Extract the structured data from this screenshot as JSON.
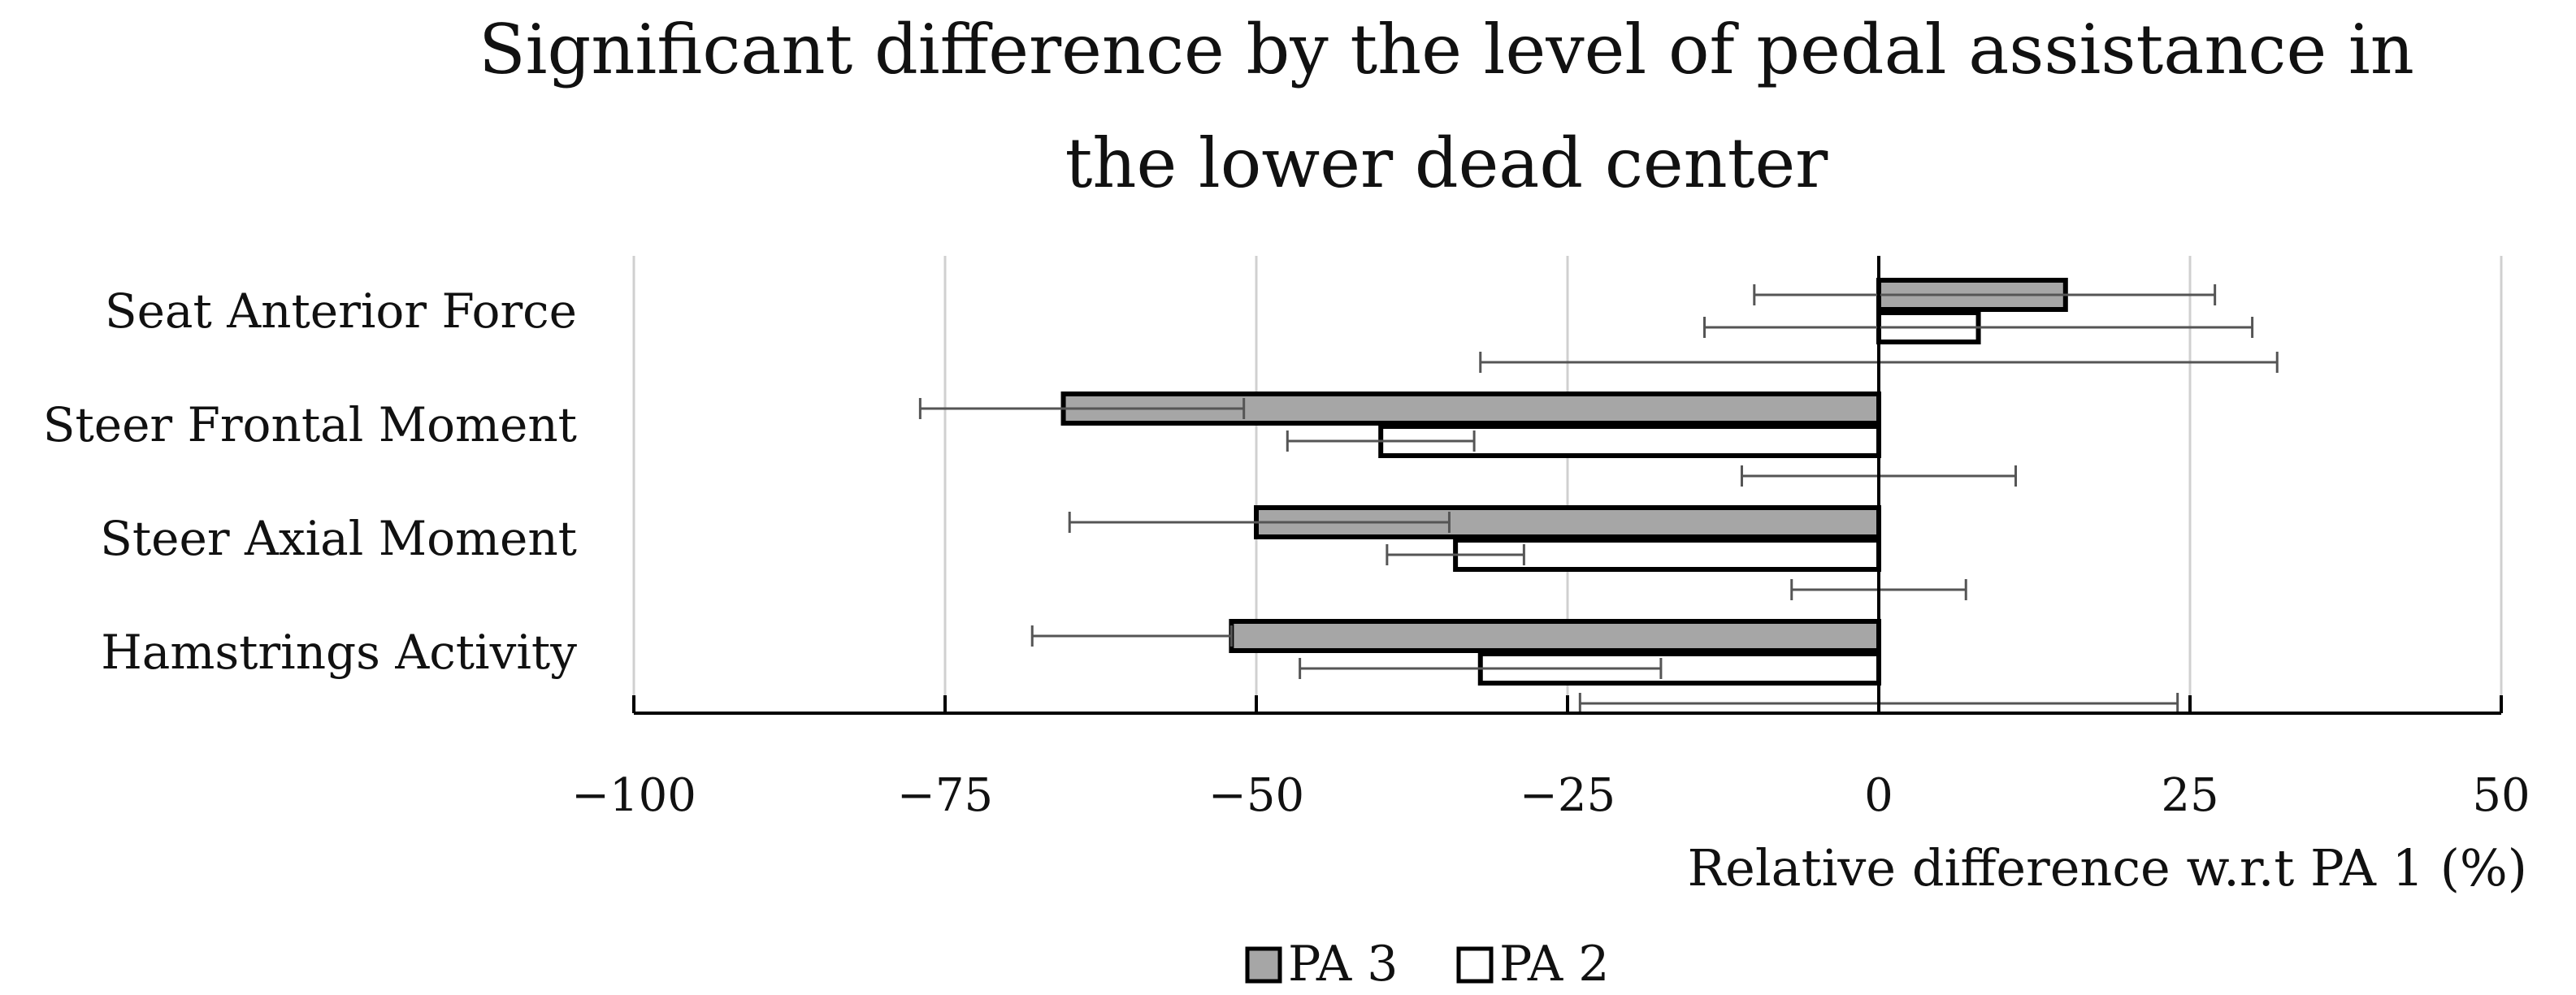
{
  "chart_data": {
    "type": "bar",
    "orientation": "horizontal",
    "title_lines": [
      "Significant difference by the level of pedal assistance in",
      "the lower dead center"
    ],
    "xlabel": "Relative difference w.r.t PA 1 (%)",
    "ylabel": "",
    "xlim": [
      -100,
      50
    ],
    "xticks": [
      -100,
      -75,
      -50,
      -25,
      0,
      25,
      50
    ],
    "xtick_labels": [
      "−100",
      "−75",
      "−50",
      "−25",
      "0",
      "25",
      "50"
    ],
    "grid": "vertical",
    "categories": [
      "Seat Anterior Force",
      "Steer Frontal Moment",
      "Steer Axial Moment",
      "Hamstrings Activity"
    ],
    "series": [
      {
        "name": "PA 3",
        "color": "#a6a6a6",
        "values": [
          15,
          -65.5,
          -50,
          -52
        ],
        "error_low": [
          -10,
          -77,
          -65,
          -68
        ],
        "error_high": [
          27,
          -51,
          -34.5,
          -52
        ]
      },
      {
        "name": "PA 2",
        "color": "#ffffff",
        "values": [
          8,
          -40,
          -34,
          -32
        ],
        "error_low": [
          -14,
          -47.5,
          -39.5,
          -46.5
        ],
        "error_high": [
          30,
          -32.5,
          -28.5,
          -17.5
        ]
      }
    ],
    "extra_error_bars": [
      {
        "category": "Seat Anterior Force",
        "low": -32,
        "high": 32
      },
      {
        "category": "Steer Frontal Moment",
        "low": -11,
        "high": 11
      },
      {
        "category": "Steer Axial Moment",
        "low": -7,
        "high": 7
      },
      {
        "category": "Hamstrings Activity",
        "low": -24,
        "high": 24
      }
    ],
    "legend": {
      "placement": "bottom-center",
      "entries": [
        "PA 3",
        "PA 2"
      ]
    }
  }
}
